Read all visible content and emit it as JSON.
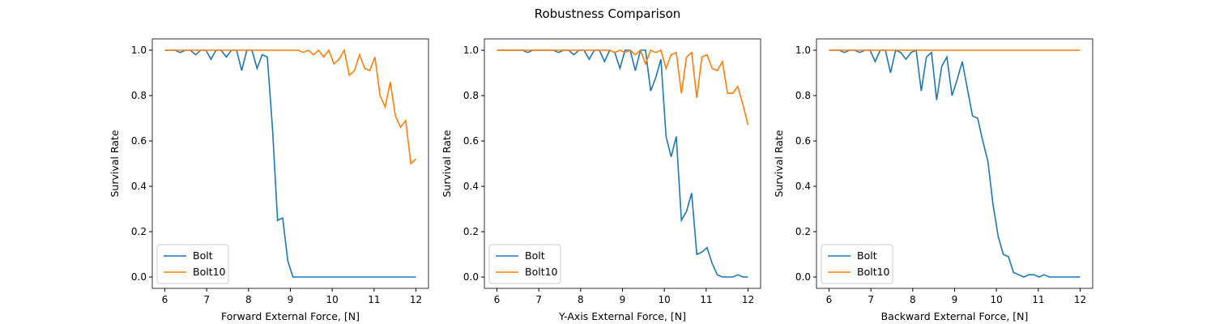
{
  "title": "Robustness Comparison",
  "chart_data": [
    {
      "type": "line",
      "xlabel": "Forward External Force, [N]",
      "ylabel": "Survival Rate",
      "x": [
        6.0,
        6.122,
        6.245,
        6.367,
        6.49,
        6.612,
        6.735,
        6.857,
        6.98,
        7.102,
        7.224,
        7.347,
        7.469,
        7.592,
        7.714,
        7.837,
        7.959,
        8.082,
        8.204,
        8.327,
        8.449,
        8.571,
        8.694,
        8.816,
        8.939,
        9.061,
        9.184,
        9.306,
        9.429,
        9.551,
        9.673,
        9.796,
        9.918,
        10.041,
        10.163,
        10.286,
        10.408,
        10.531,
        10.653,
        10.776,
        10.898,
        11.02,
        11.143,
        11.265,
        11.388,
        11.51,
        11.633,
        11.755,
        11.878,
        12.0
      ],
      "series": [
        {
          "name": "Bolt",
          "color": "#1f77b4",
          "values": [
            1,
            1,
            1,
            0.99,
            1,
            1,
            0.98,
            1,
            1,
            0.96,
            1,
            1,
            0.97,
            1,
            1,
            0.91,
            1,
            1,
            0.92,
            0.98,
            0.97,
            0.66,
            0.25,
            0.26,
            0.07,
            0,
            0,
            0,
            0,
            0,
            0,
            0,
            0,
            0,
            0,
            0,
            0,
            0,
            0,
            0,
            0,
            0,
            0,
            0,
            0,
            0,
            0,
            0,
            0,
            0
          ]
        },
        {
          "name": "Bolt10",
          "color": "#ff7f0e",
          "values": [
            1,
            1,
            1,
            1,
            1,
            1,
            1,
            1,
            1,
            1,
            1,
            1,
            1,
            1,
            1,
            1,
            1,
            1,
            1,
            1,
            1,
            1,
            1,
            1,
            1,
            1,
            1,
            0.99,
            1,
            0.98,
            1,
            0.97,
            1,
            0.94,
            0.96,
            1,
            0.89,
            0.91,
            0.98,
            0.92,
            0.91,
            0.97,
            0.8,
            0.75,
            0.86,
            0.71,
            0.66,
            0.69,
            0.5,
            0.52
          ]
        }
      ],
      "xlim": [
        5.7,
        12.3
      ],
      "ylim": [
        -0.05,
        1.05
      ],
      "xticks": [
        6,
        7,
        8,
        9,
        10,
        11,
        12
      ],
      "yticks": [
        {
          "value": 0,
          "label": "0.0"
        },
        0.2,
        0.4,
        0.6,
        0.8,
        {
          "value": 1,
          "label": "1.0"
        }
      ],
      "legend": "lower left"
    },
    {
      "type": "line",
      "xlabel": "Y-Axis External Force, [N]",
      "ylabel": "Survival Rate",
      "x": [
        6.0,
        6.122,
        6.245,
        6.367,
        6.49,
        6.612,
        6.735,
        6.857,
        6.98,
        7.102,
        7.224,
        7.347,
        7.469,
        7.592,
        7.714,
        7.837,
        7.959,
        8.082,
        8.204,
        8.327,
        8.449,
        8.571,
        8.694,
        8.816,
        8.939,
        9.061,
        9.184,
        9.306,
        9.429,
        9.551,
        9.673,
        9.796,
        9.918,
        10.041,
        10.163,
        10.286,
        10.408,
        10.531,
        10.653,
        10.776,
        10.898,
        11.02,
        11.143,
        11.265,
        11.388,
        11.51,
        11.633,
        11.755,
        11.878,
        12.0
      ],
      "series": [
        {
          "name": "Bolt",
          "color": "#1f77b4",
          "values": [
            1,
            1,
            1,
            1,
            1,
            1,
            0.99,
            1,
            1,
            1,
            1,
            1,
            0.99,
            1,
            1,
            0.98,
            1,
            1,
            0.96,
            1,
            1,
            0.95,
            1,
            0.99,
            0.92,
            1,
            1,
            0.91,
            1,
            1,
            0.82,
            0.88,
            0.96,
            0.62,
            0.53,
            0.62,
            0.25,
            0.29,
            0.37,
            0.1,
            0.11,
            0.13,
            0.06,
            0.01,
            0,
            0,
            0,
            0.01,
            0,
            0
          ]
        },
        {
          "name": "Bolt10",
          "color": "#ff7f0e",
          "values": [
            1,
            1,
            1,
            1,
            1,
            1,
            1,
            1,
            1,
            1,
            1,
            1,
            1,
            1,
            1,
            1,
            1,
            1,
            1,
            1,
            1,
            1,
            1,
            0.99,
            1,
            0.99,
            1,
            0.98,
            1,
            0.94,
            1,
            0.99,
            1,
            0.92,
            0.98,
            0.99,
            0.81,
            0.97,
            0.99,
            0.79,
            0.97,
            0.98,
            0.92,
            0.91,
            0.95,
            0.81,
            0.81,
            0.84,
            0.76,
            0.67
          ]
        }
      ],
      "xlim": [
        5.7,
        12.3
      ],
      "ylim": [
        -0.05,
        1.05
      ],
      "xticks": [
        6,
        7,
        8,
        9,
        10,
        11,
        12
      ],
      "yticks": [
        {
          "value": 0,
          "label": "0.0"
        },
        0.2,
        0.4,
        0.6,
        0.8,
        {
          "value": 1,
          "label": "1.0"
        }
      ],
      "legend": "lower left"
    },
    {
      "type": "line",
      "xlabel": "Backward External Force, [N]",
      "ylabel": "Survival Rate",
      "x": [
        6.0,
        6.122,
        6.245,
        6.367,
        6.49,
        6.612,
        6.735,
        6.857,
        6.98,
        7.102,
        7.224,
        7.347,
        7.469,
        7.592,
        7.714,
        7.837,
        7.959,
        8.082,
        8.204,
        8.327,
        8.449,
        8.571,
        8.694,
        8.816,
        8.939,
        9.061,
        9.184,
        9.306,
        9.429,
        9.551,
        9.673,
        9.796,
        9.918,
        10.041,
        10.163,
        10.286,
        10.408,
        10.531,
        10.653,
        10.776,
        10.898,
        11.02,
        11.143,
        11.265,
        11.388,
        11.51,
        11.633,
        11.755,
        11.878,
        12.0
      ],
      "series": [
        {
          "name": "Bolt",
          "color": "#1f77b4",
          "values": [
            1,
            1,
            1,
            0.99,
            1,
            1,
            0.99,
            1,
            1,
            0.95,
            1,
            1,
            0.9,
            1,
            0.99,
            0.96,
            0.99,
            1,
            0.82,
            0.97,
            0.99,
            0.78,
            0.93,
            0.97,
            0.8,
            0.87,
            0.95,
            0.83,
            0.71,
            0.7,
            0.6,
            0.51,
            0.32,
            0.18,
            0.1,
            0.09,
            0.02,
            0.01,
            0,
            0.01,
            0.01,
            0,
            0.01,
            0,
            0,
            0,
            0,
            0,
            0,
            0
          ]
        },
        {
          "name": "Bolt10",
          "color": "#ff7f0e",
          "values": [
            1,
            1,
            1,
            1,
            1,
            1,
            1,
            1,
            1,
            1,
            1,
            1,
            1,
            1,
            1,
            1,
            1,
            1,
            1,
            1,
            1,
            1,
            1,
            1,
            1,
            1,
            1,
            1,
            1,
            1,
            1,
            1,
            1,
            1,
            1,
            1,
            1,
            1,
            1,
            1,
            1,
            1,
            1,
            1,
            1,
            1,
            1,
            1,
            1,
            1
          ]
        }
      ],
      "xlim": [
        5.7,
        12.3
      ],
      "ylim": [
        -0.05,
        1.05
      ],
      "xticks": [
        6,
        7,
        8,
        9,
        10,
        11,
        12
      ],
      "yticks": [
        {
          "value": 0,
          "label": "0.0"
        },
        0.2,
        0.4,
        0.6,
        0.8,
        {
          "value": 1,
          "label": "1.0"
        }
      ],
      "legend": "lower left"
    }
  ]
}
